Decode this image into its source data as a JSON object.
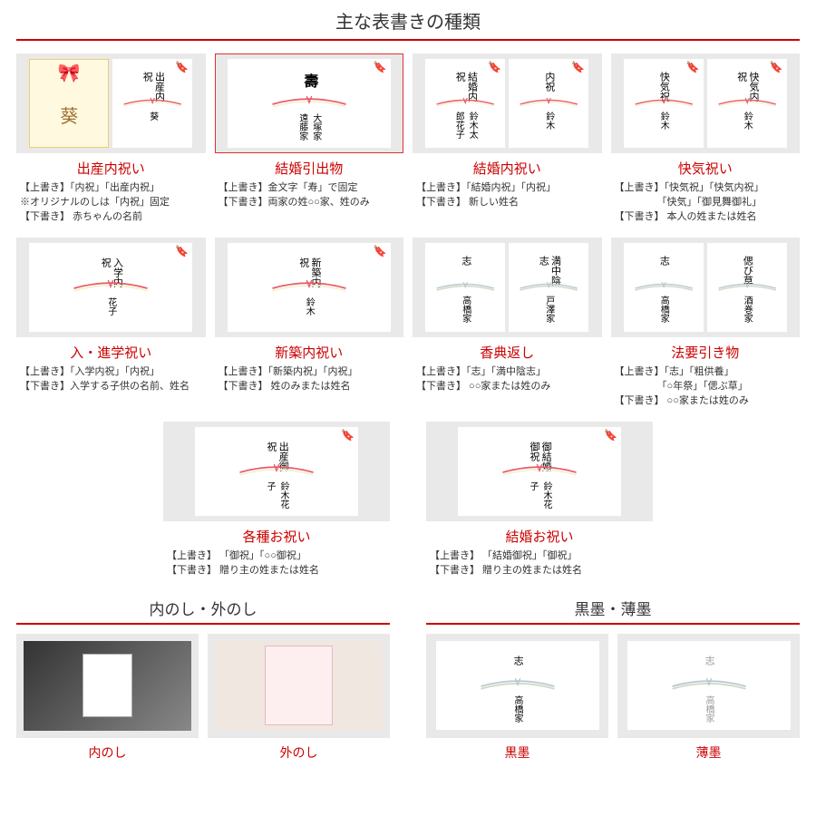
{
  "main_title": "主な表書きの種類",
  "colors": {
    "accent": "#c00",
    "bg_box": "#e9e9e9"
  },
  "row1": [
    {
      "title": "出産内祝い",
      "desc": [
        "【上書き】「内祝」「出産内祝」",
        "※オリジナルのしは「内祝」固定",
        "【下書き】 赤ちゃんの名前"
      ],
      "left_special": true,
      "noshi_top": "出産内祝",
      "noshi_bottom": "葵",
      "ribbon": "red"
    },
    {
      "title": "結婚引出物",
      "desc": [
        "【上書き】金文字「寿」で固定",
        "【下書き】両家の姓○○家、姓のみ"
      ],
      "selected": true,
      "wide": true,
      "noshi_top": "壽",
      "noshi_top_big": true,
      "noshi_bottom": "大塚家　遠藤家",
      "ribbon": "red"
    },
    {
      "title": "結婚内祝い",
      "desc": [
        "【上書き】「結婚内祝」「内祝」",
        "【下書き】 新しい姓名"
      ],
      "pair": [
        {
          "top": "結婚内祝",
          "bottom": "鈴木太郎花子"
        },
        {
          "top": "内祝",
          "bottom": "鈴木"
        }
      ],
      "ribbon": "red"
    },
    {
      "title": "快気祝い",
      "desc": [
        "【上書き】「快気祝」「快気内祝」",
        "　　　　 「快気」「御見舞御礼」",
        "【下書き】 本人の姓または姓名"
      ],
      "pair": [
        {
          "top": "快気祝",
          "bottom": "鈴木"
        },
        {
          "top": "快気内祝",
          "bottom": "鈴木"
        }
      ],
      "ribbon": "red"
    }
  ],
  "row2": [
    {
      "title": "入・進学祝い",
      "desc": [
        "【上書き】「入学内祝」「内祝」",
        "【下書き】入学する子供の名前、姓名"
      ],
      "wide": true,
      "noshi_top": "入学内祝",
      "noshi_bottom": "花子",
      "ribbon": "red"
    },
    {
      "title": "新築内祝い",
      "desc": [
        "【上書き】「新築内祝」「内祝」",
        "【下書き】 姓のみまたは姓名"
      ],
      "wide": true,
      "noshi_top": "新築内祝",
      "noshi_bottom": "鈴木",
      "ribbon": "red"
    },
    {
      "title": "香典返し",
      "desc": [
        "【上書き】「志」「満中陰志」",
        "【下書き】 ○○家または姓のみ"
      ],
      "pair": [
        {
          "top": "志",
          "bottom": "高橋家"
        },
        {
          "top": "満中陰志",
          "bottom": "戸澤家"
        }
      ],
      "ribbon": "grey"
    },
    {
      "title": "法要引き物",
      "desc": [
        "【上書き】「志」「粗供養」",
        "　　　　 「○年祭」「偲ぶ草」",
        "【下書き】 ○○家または姓のみ"
      ],
      "pair": [
        {
          "top": "志",
          "bottom": "高橋家"
        },
        {
          "top": "偲び草",
          "bottom": "酒巻家"
        }
      ],
      "ribbon": "grey"
    }
  ],
  "row3": [
    {
      "title": "各種お祝い",
      "desc": [
        "【上書き】 「御祝」「○○御祝」",
        "【下書き】 贈り主の姓または姓名"
      ],
      "wide": true,
      "noshi_top": "出産御祝",
      "noshi_bottom": "鈴木花子",
      "ribbon": "red"
    },
    {
      "title": "結婚お祝い",
      "desc": [
        "【上書き】 「結婚御祝」「御祝」",
        "【下書き】 贈り主の姓または姓名"
      ],
      "wide": true,
      "noshi_top": "御結婚御祝",
      "noshi_bottom": "鈴木花子",
      "ribbon": "red"
    }
  ],
  "bottom_left": {
    "title": "内のし・外のし",
    "items": [
      "内のし",
      "外のし"
    ]
  },
  "bottom_right": {
    "title": "黒墨・薄墨",
    "items": [
      {
        "label": "黒墨",
        "top": "志",
        "bottom": "高橋家",
        "faded": false
      },
      {
        "label": "薄墨",
        "top": "志",
        "bottom": "高橋家",
        "faded": true
      }
    ]
  }
}
